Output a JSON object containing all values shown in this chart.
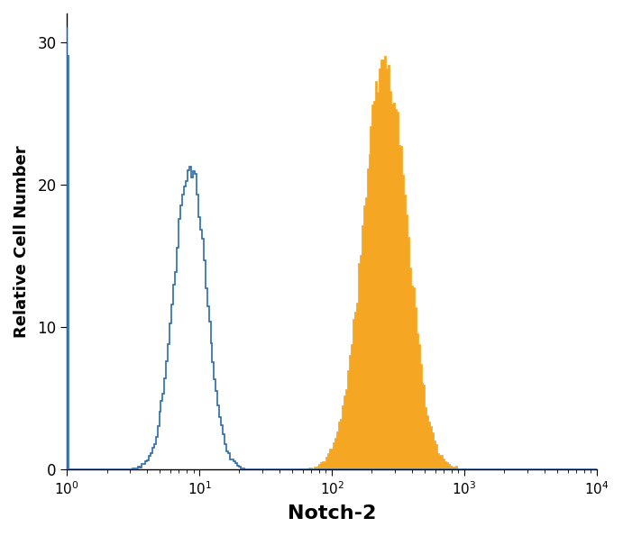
{
  "xlabel": "Notch-2",
  "ylabel": "Relative Cell Number",
  "xlim": [
    1,
    10000
  ],
  "ylim": [
    0,
    32
  ],
  "yticks": [
    0,
    10,
    20,
    30
  ],
  "blue_color": "#2B6BA8",
  "orange_color": "#F5A623",
  "background_color": "#ffffff",
  "figsize": [
    6.91,
    5.95
  ],
  "dpi": 100,
  "num_bins": 300
}
